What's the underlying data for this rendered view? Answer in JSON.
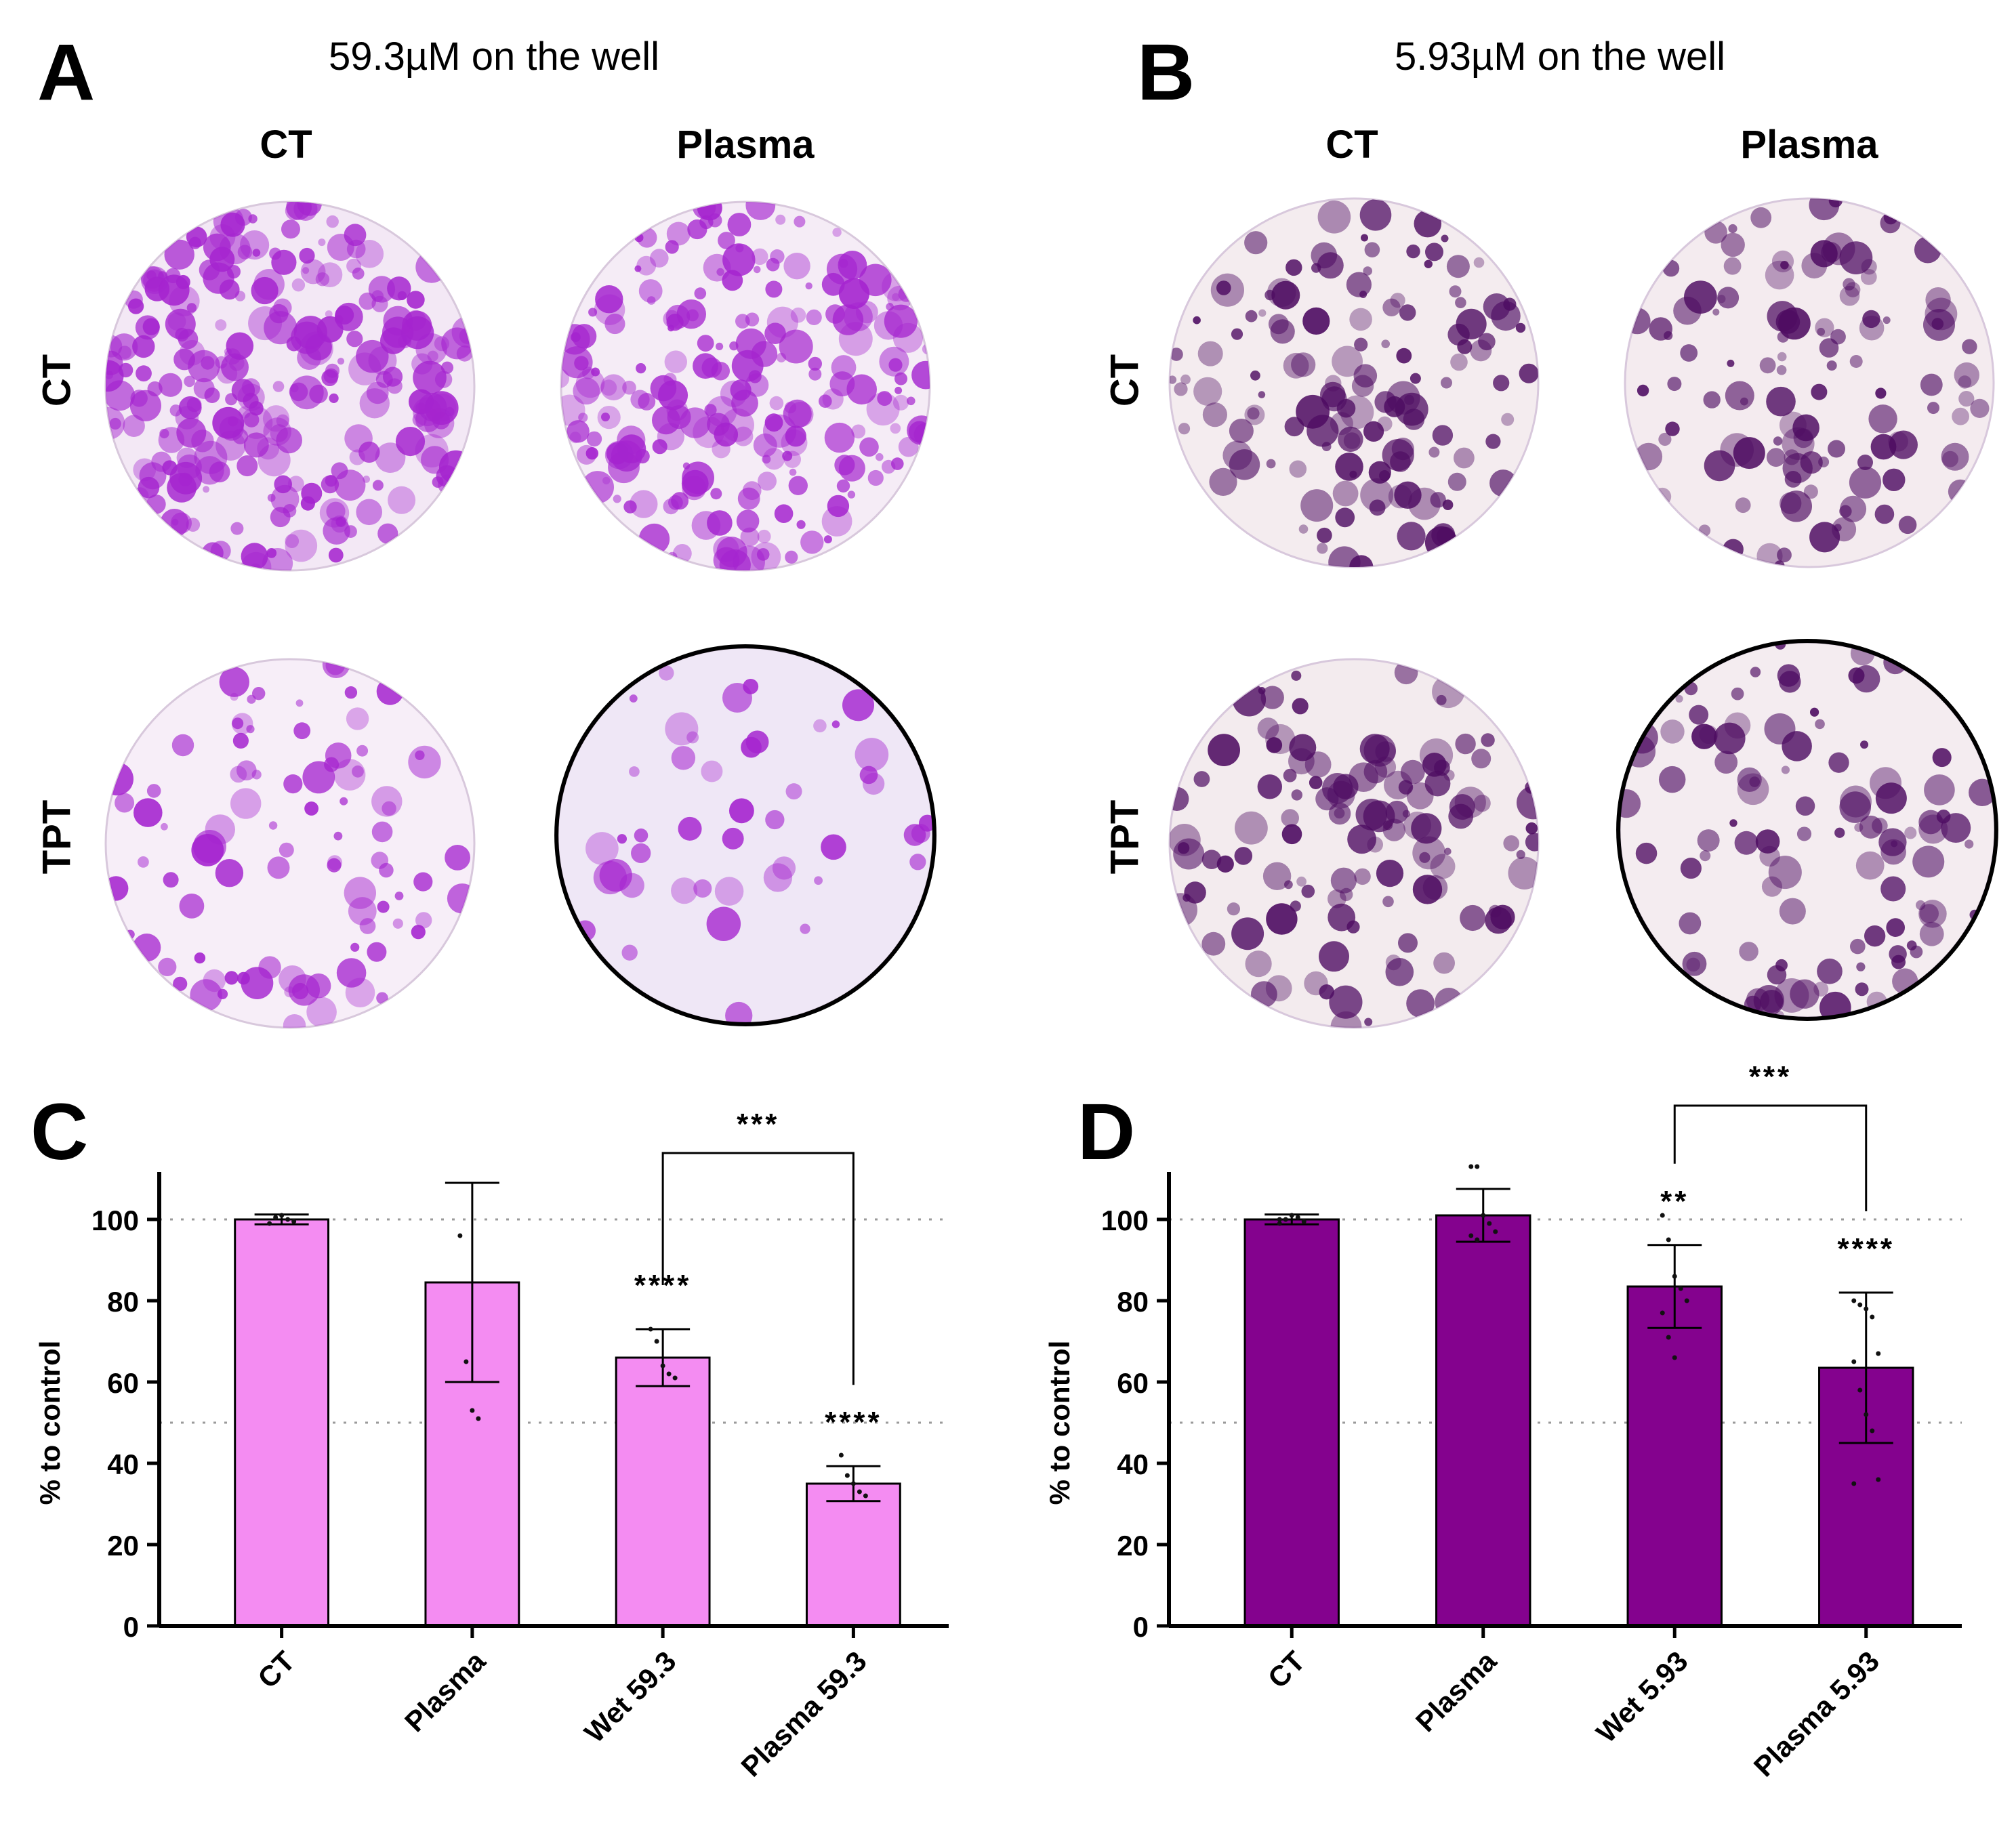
{
  "colors": {
    "bar_light": "#f48cf2",
    "bar_dark": "#84028e",
    "stain_light": "#a524cf",
    "stain_dark": "#4e0c62",
    "ref_line": "#9a9a9a"
  },
  "panel_a": {
    "letter": "A",
    "concentration": "59.3µM on the well",
    "columns": [
      "CT",
      "Plasma"
    ],
    "rows": [
      "CT",
      "TPT"
    ]
  },
  "panel_b": {
    "letter": "B",
    "concentration": "5.93µM on the well",
    "columns": [
      "CT",
      "Plasma"
    ],
    "rows": [
      "CT",
      "TPT"
    ]
  },
  "chart_data": [
    {
      "panel": "C",
      "type": "bar",
      "ylabel": "% to control",
      "xlabel": "",
      "ylim": [
        0,
        110
      ],
      "yticks": [
        0,
        20,
        40,
        60,
        80,
        100
      ],
      "ref_lines": [
        100,
        50
      ],
      "categories": [
        "CT",
        "Plasma",
        "Wet 59.3",
        "Plasma 59.3"
      ],
      "values": [
        100,
        84.5,
        66,
        35
      ],
      "errors": [
        1.2,
        24.5,
        7,
        4.3
      ],
      "points": [
        [
          99,
          100.5,
          101,
          100,
          99.5
        ],
        [
          96,
          65,
          53,
          51
        ],
        [
          73,
          70,
          64,
          62,
          61
        ],
        [
          42,
          37,
          35,
          33,
          32
        ]
      ],
      "significance": [
        "",
        "",
        "****",
        "****"
      ],
      "brackets": [
        {
          "from": 2,
          "to": 3,
          "label": "***"
        }
      ]
    },
    {
      "panel": "D",
      "type": "bar",
      "ylabel": "% to control",
      "xlabel": "",
      "ylim": [
        0,
        110
      ],
      "yticks": [
        0,
        20,
        40,
        60,
        80,
        100
      ],
      "ref_lines": [
        100,
        50
      ],
      "categories": [
        "CT",
        "Plasma",
        "Wet 5.93",
        "Plasma 5.93"
      ],
      "values": [
        100,
        101,
        83.5,
        63.5
      ],
      "errors": [
        1.2,
        6.5,
        10.2,
        18.5
      ],
      "points": [
        [
          99,
          100,
          101,
          100.5,
          99.5,
          100
        ],
        [
          113,
          113,
          101,
          99,
          97,
          96,
          95
        ],
        [
          101,
          95,
          86,
          83,
          80,
          77,
          71,
          66
        ],
        [
          80,
          79,
          78,
          76,
          67,
          65,
          58,
          52,
          48,
          36,
          35
        ]
      ],
      "significance": [
        "",
        "",
        "**",
        "****"
      ],
      "brackets": [
        {
          "from": 2,
          "to": 3,
          "label": "***"
        }
      ]
    }
  ]
}
